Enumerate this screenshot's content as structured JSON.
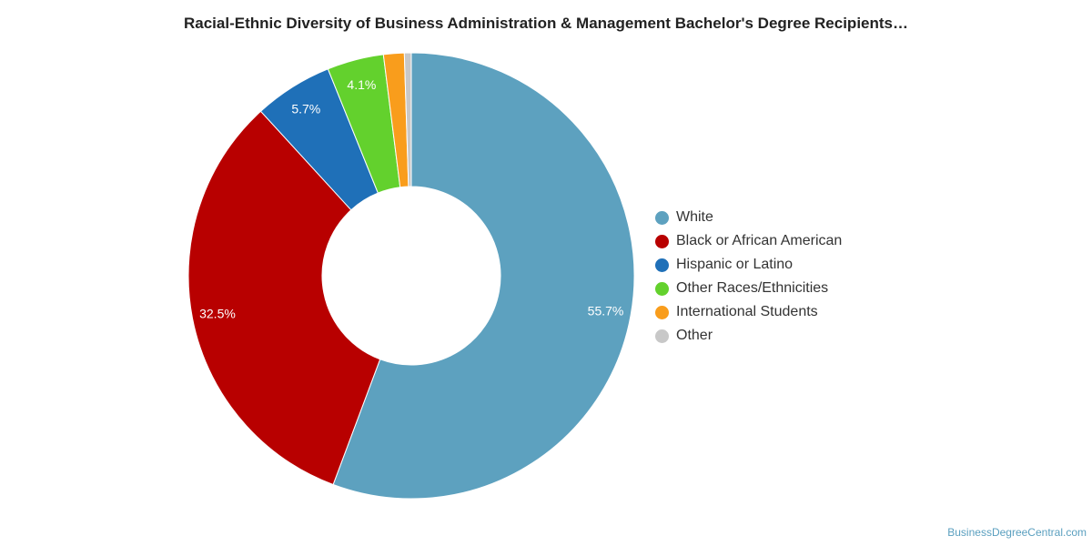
{
  "chart_data": {
    "type": "pie",
    "title": "Racial-Ethnic Diversity of Business Administration & Management Bachelor's Degree Recipients…",
    "legend_position": "right",
    "categories": [
      "White",
      "Black or African American",
      "Hispanic or Latino",
      "Other Races/Ethnicities",
      "International Students",
      "Other"
    ],
    "values": [
      55.7,
      32.5,
      5.7,
      4.1,
      1.5,
      0.5
    ],
    "labels": [
      "55.7%",
      "32.5%",
      "5.7%",
      "4.1%",
      "",
      ""
    ],
    "colors": [
      "#5da1bf",
      "#b80000",
      "#1f70b8",
      "#63d12d",
      "#f99d1c",
      "#c8c8c8"
    ]
  },
  "footer": {
    "source": "BusinessDegreeCentral.com"
  }
}
